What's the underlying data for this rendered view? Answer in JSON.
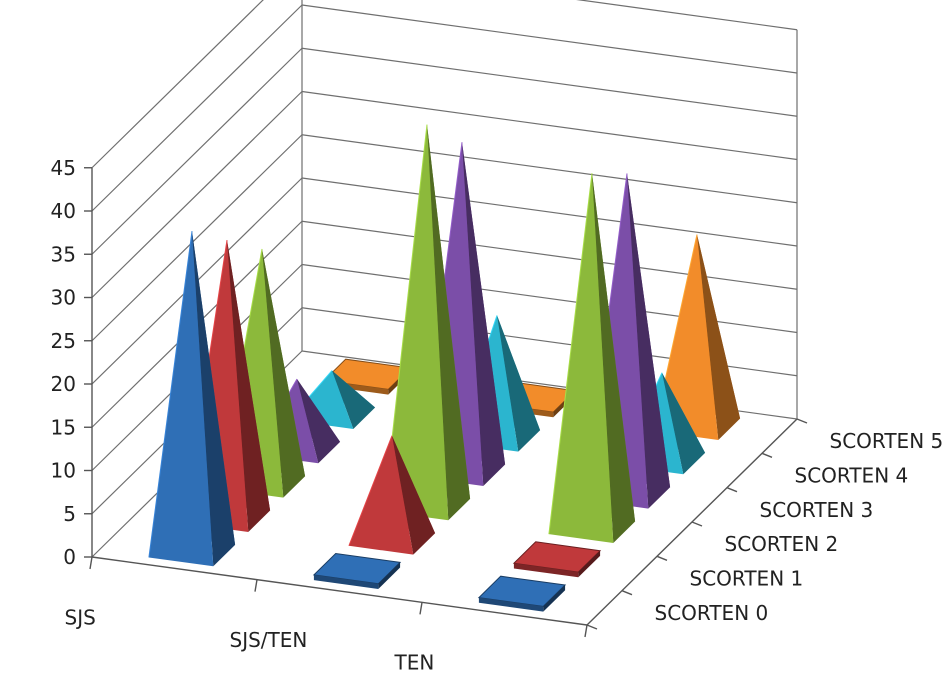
{
  "chart_data": {
    "type": "bar",
    "style": "3d-pyramid",
    "title": "",
    "xlabel": "",
    "ylabel": "",
    "ylim": [
      0,
      45
    ],
    "y_ticks": [
      "0",
      "5",
      "10",
      "15",
      "20",
      "25",
      "30",
      "35",
      "40",
      "45"
    ],
    "categories": [
      "SJS",
      "SJS/TEN",
      "TEN"
    ],
    "series": [
      {
        "name": "SCORTEN 0",
        "values": [
          37,
          0,
          0
        ],
        "color": "#2f6fb6"
      },
      {
        "name": "SCORTEN 1",
        "values": [
          32,
          12,
          0
        ],
        "color": "#c0393b"
      },
      {
        "name": "SCORTEN 2",
        "values": [
          27,
          44,
          41
        ],
        "color": "#8cb93b"
      },
      {
        "name": "SCORTEN 3",
        "values": [
          8,
          38,
          37
        ],
        "color": "#7b4ea8"
      },
      {
        "name": "SCORTEN 4",
        "values": [
          5,
          14,
          10
        ],
        "color": "#2bb5cf"
      },
      {
        "name": "SCORTEN 5",
        "values": [
          0,
          0,
          22
        ],
        "color": "#f28c2a"
      }
    ],
    "grid": true,
    "legend": "none"
  }
}
